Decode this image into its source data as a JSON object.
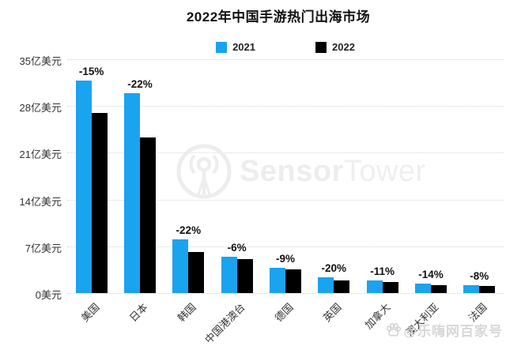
{
  "title": "2022年中国手游热门出海市场",
  "legend": [
    {
      "label": "2021",
      "color": "#1aa3ef"
    },
    {
      "label": "2022",
      "color": "#000000"
    }
  ],
  "chart_data": {
    "type": "bar",
    "title": "2022年中国手游热门出海市场",
    "categories": [
      "美国",
      "日本",
      "韩国",
      "中国港澳台",
      "德国",
      "英国",
      "加拿大",
      "澳大利亚",
      "法国"
    ],
    "series": [
      {
        "name": "2021",
        "color": "#1aa3ef",
        "values": [
          31.8,
          29.9,
          8.0,
          5.4,
          3.8,
          2.4,
          1.9,
          1.4,
          1.2
        ]
      },
      {
        "name": "2022",
        "color": "#000000",
        "values": [
          27.0,
          23.3,
          6.2,
          5.1,
          3.5,
          1.9,
          1.7,
          1.2,
          1.1
        ]
      }
    ],
    "bar_labels": [
      "-15%",
      "-22%",
      "-22%",
      "-6%",
      "-9%",
      "-20%",
      "-11%",
      "-14%",
      "-8%"
    ],
    "unit": "亿美元",
    "ylim": [
      0,
      35
    ],
    "ytick_step": 7,
    "yticks": [
      "0美元",
      "7亿美元",
      "14亿美元",
      "21亿美元",
      "28亿美元",
      "35亿美元"
    ],
    "grid": "horizontal-dotted",
    "legend_position": "top-center",
    "xlabel": "",
    "ylabel": ""
  },
  "watermarks": {
    "logo_icon": "sensortower-logo-icon",
    "logo_text_bold": "Sensor",
    "logo_text_light": "Tower",
    "source_icon": "baidu-paw-icon",
    "bottom_right": "@乐嗨网百家号"
  },
  "colors": {
    "bar_2021": "#1aa3ef",
    "bar_2022": "#000000",
    "gridline": "#d6d6d6",
    "watermark_gray": "#ededed",
    "text_dark": "#111111",
    "axis_text": "#333333"
  }
}
